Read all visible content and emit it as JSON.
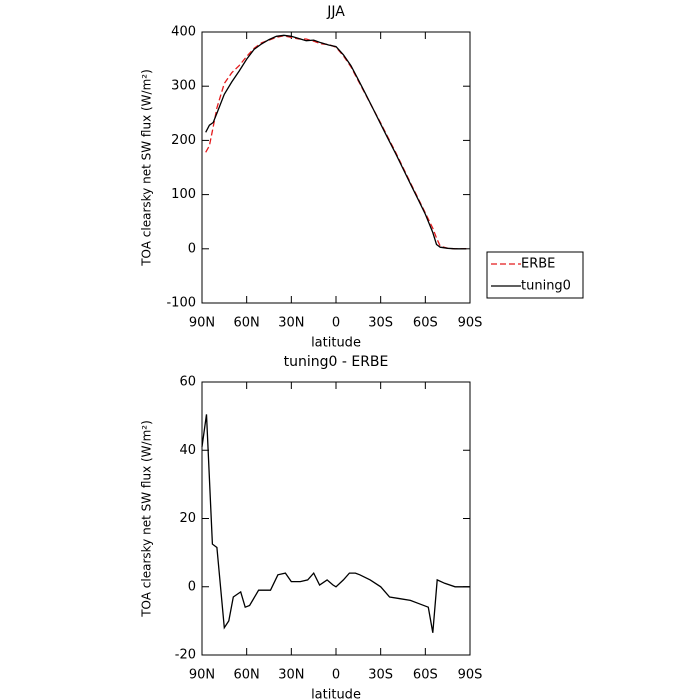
{
  "chart_data": [
    {
      "type": "line",
      "title": "JJA",
      "x_label": "latitude",
      "y_label": "TOA clearsky net SW flux (W/m²)",
      "x": [
        87.5,
        85,
        82.5,
        80,
        75,
        70,
        65,
        60,
        55,
        50,
        45,
        40,
        35,
        30,
        25,
        20,
        15,
        10,
        5,
        0,
        -5,
        -10,
        -15,
        -20,
        -25,
        -30,
        -35,
        -40,
        -45,
        -50,
        -55,
        -60,
        -65,
        -67.5,
        -70,
        -75,
        -80,
        -85,
        -87.5
      ],
      "series": [
        {
          "name": "ERBE",
          "color": "#e41a1c",
          "linestyle": "dashed",
          "values": [
            178,
            190,
            225,
            260,
            305,
            325,
            338,
            355,
            370,
            380,
            385,
            390,
            393,
            390,
            387,
            387,
            383,
            378,
            377,
            372,
            356,
            336,
            310,
            284,
            258,
            232,
            205,
            178,
            150,
            122,
            94,
            66,
            38,
            20,
            5,
            1,
            0,
            0,
            0
          ]
        },
        {
          "name": "tuning0",
          "color": "#000000",
          "linestyle": "solid",
          "values": [
            215,
            228,
            233,
            250,
            285,
            308,
            328,
            350,
            368,
            378,
            386,
            392,
            394,
            392,
            388,
            384,
            385,
            380,
            376,
            373,
            358,
            338,
            312,
            285,
            258,
            230,
            203,
            176,
            148,
            120,
            92,
            64,
            30,
            8,
            3,
            1,
            0,
            0,
            0
          ]
        }
      ],
      "xlim": [
        90,
        -90
      ],
      "xticks": [
        {
          "value": 90,
          "label": "90N"
        },
        {
          "value": 60,
          "label": "60N"
        },
        {
          "value": 30,
          "label": "30N"
        },
        0,
        {
          "value": -30,
          "label": "30S"
        },
        {
          "value": -60,
          "label": "60S"
        },
        {
          "value": -90,
          "label": "90S"
        }
      ],
      "ylim": [
        -100,
        400
      ],
      "yticks": [
        -100,
        0,
        100,
        200,
        300,
        400
      ],
      "legend": "right"
    },
    {
      "type": "line",
      "title": "tuning0 - ERBE",
      "x_label": "latitude",
      "y_label": "TOA clearsky net SW flux (W/m²)",
      "x": [
        90,
        87,
        83,
        80,
        75,
        72,
        69,
        64,
        61,
        58,
        52,
        44,
        39,
        34,
        30,
        24,
        19,
        15,
        11,
        6,
        2,
        0,
        -5,
        -9,
        -13,
        -16,
        -23,
        -30,
        -36,
        -43,
        -50,
        -56,
        -62,
        -65,
        -68,
        -73,
        -80,
        -90
      ],
      "values": [
        41,
        50.5,
        12.5,
        11.5,
        -12,
        -10,
        -3,
        -1.5,
        -6,
        -5.5,
        -1,
        -1,
        3.5,
        4,
        1.5,
        1.5,
        2,
        4,
        0.5,
        2,
        0.5,
        0,
        2,
        4,
        4,
        3.5,
        2,
        0,
        -3,
        -3.5,
        -4,
        -5,
        -6,
        -13.5,
        2,
        1,
        0,
        0
      ],
      "color": "#000000",
      "xlim": [
        90,
        -90
      ],
      "xticks": [
        {
          "value": 90,
          "label": "90N"
        },
        {
          "value": 60,
          "label": "60N"
        },
        {
          "value": 30,
          "label": "30N"
        },
        0,
        {
          "value": -30,
          "label": "30S"
        },
        {
          "value": -60,
          "label": "60S"
        },
        {
          "value": -90,
          "label": "90S"
        }
      ],
      "ylim": [
        -20,
        60
      ],
      "yticks": [
        -20,
        0,
        20,
        40,
        60
      ]
    }
  ]
}
